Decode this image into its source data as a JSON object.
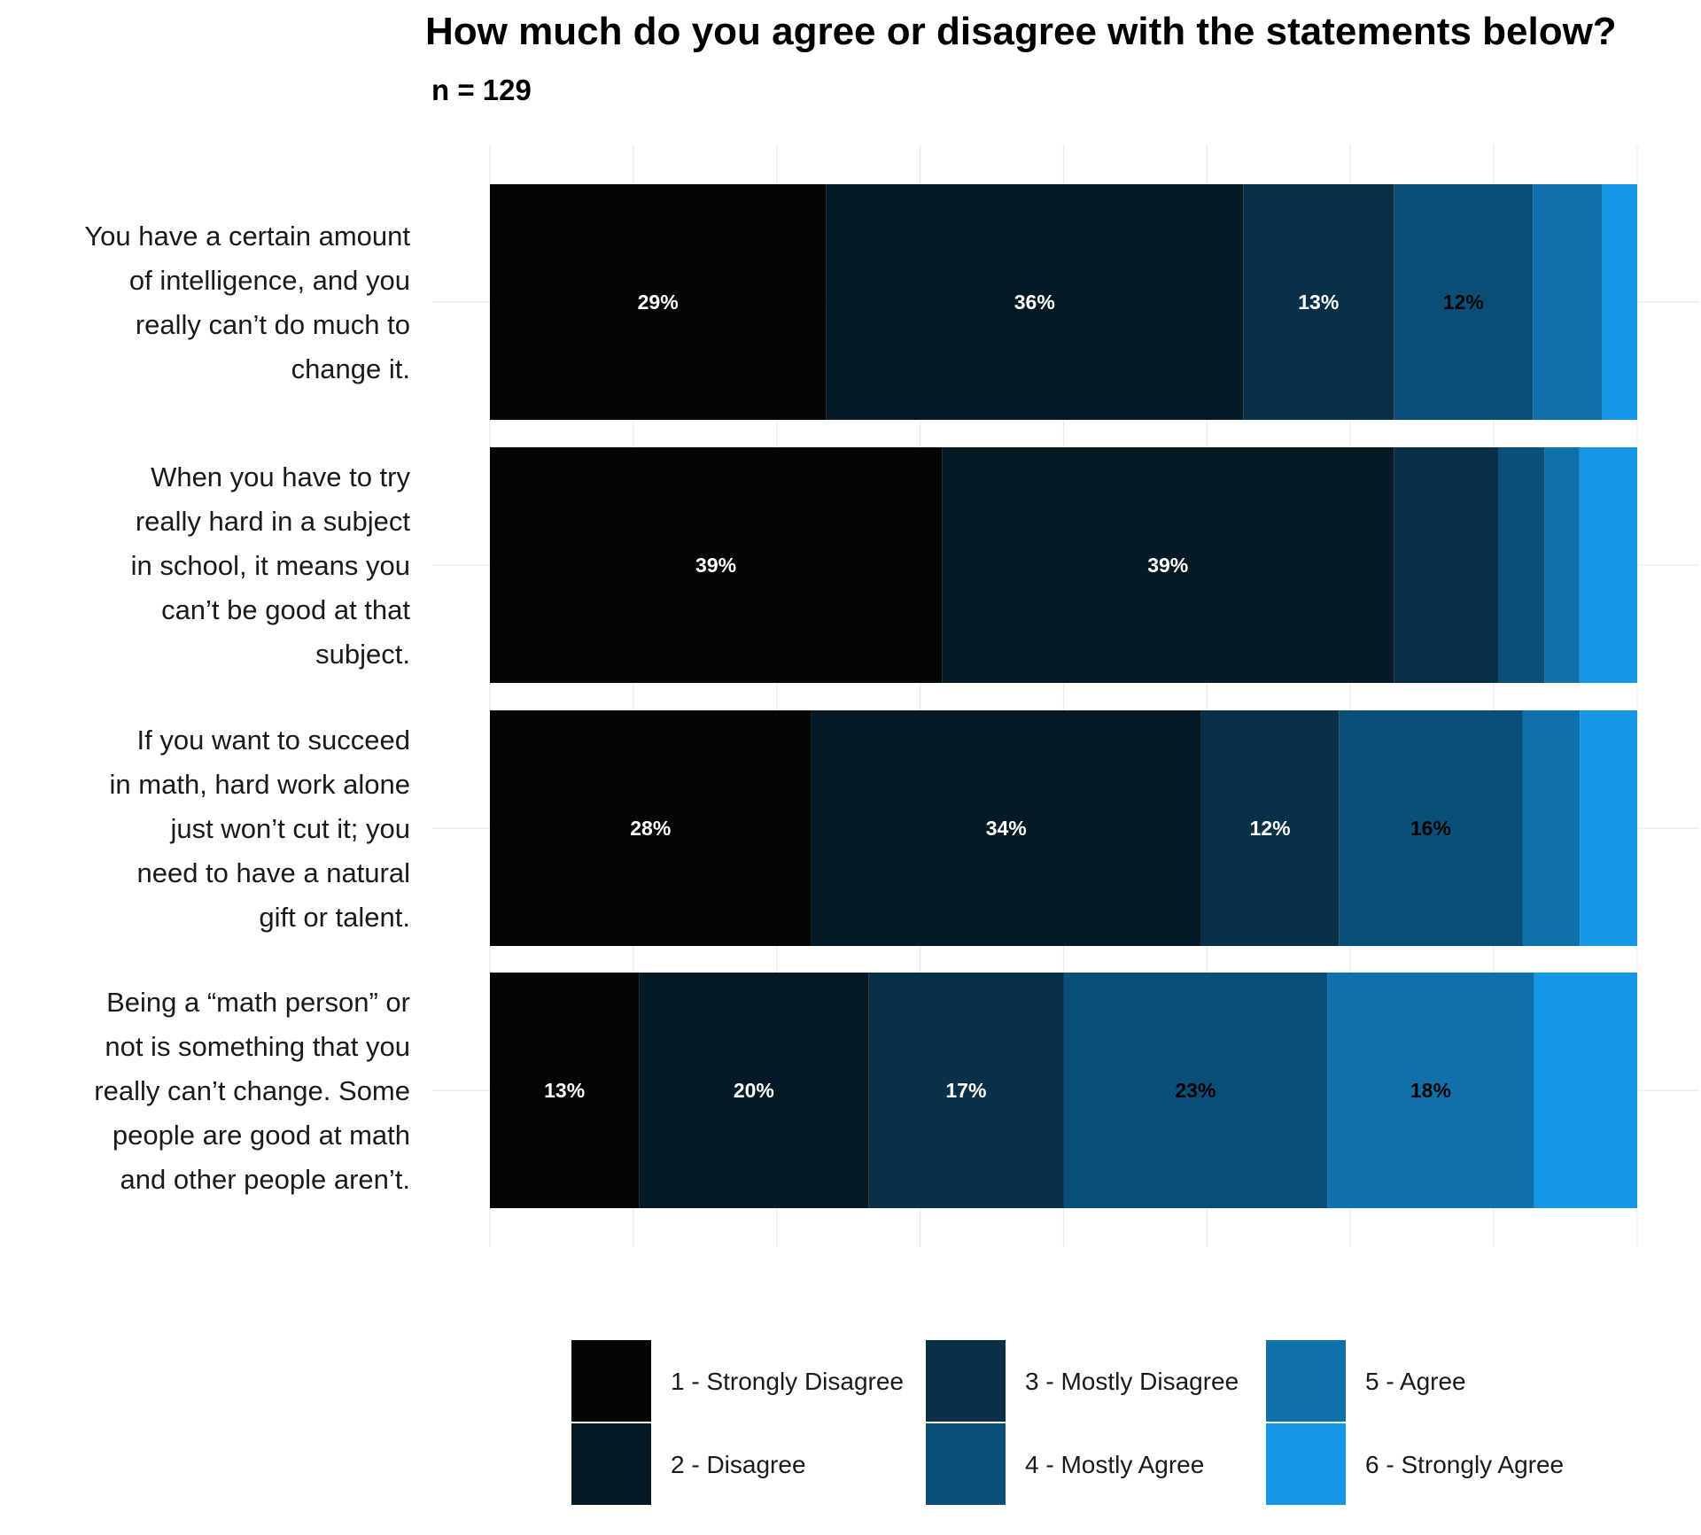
{
  "chart_data": {
    "type": "bar",
    "orientation": "horizontal",
    "stacked": true,
    "title": "How much do you agree or disagree with the statements below?",
    "subtitle": "n = 129",
    "categories": [
      "You have a certain amount of intelligence, and you really can’t do much to change it.",
      "When you have to try really hard in a subject in school, it means you can’t be good at that subject.",
      "If you want to succeed in math, hard work alone just won’t cut it; you need to have a natural gift or talent.",
      "Being a “math person” or not is something that you really can’t change. Some people are good at math and other people aren’t."
    ],
    "category_lines": [
      [
        "You have a certain amount",
        "of intelligence, and you",
        "really can’t do much to",
        "change it."
      ],
      [
        "When you have to try",
        "really hard in a subject",
        "in school, it means you",
        "can’t be good at that",
        "subject."
      ],
      [
        "If you want to succeed",
        "in math, hard work alone",
        "just won’t cut it; you",
        "need to have a natural",
        "gift or talent."
      ],
      [
        "Being a “math person” or",
        "not is something that you",
        "really can’t change. Some",
        "people are good at math",
        "and other people aren’t."
      ]
    ],
    "series": [
      {
        "name": "1 - Strongly Disagree",
        "color": "#050505",
        "label_color": "#ffffff",
        "values": [
          29,
          39,
          28,
          13
        ]
      },
      {
        "name": "2 - Disagree",
        "color": "#061a26",
        "label_color": "#ffffff",
        "values": [
          36,
          39,
          34,
          20
        ]
      },
      {
        "name": "3 - Mostly Disagree",
        "color": "#0a3048",
        "label_color": "#ffffff",
        "values": [
          13,
          9,
          12,
          17
        ]
      },
      {
        "name": "4 - Mostly Agree",
        "color": "#0b4e77",
        "label_color": "#000000",
        "values": [
          12,
          4,
          16,
          23
        ]
      },
      {
        "name": "5 - Agree",
        "color": "#1070ac",
        "label_color": "#000000",
        "values": [
          6,
          3,
          5,
          18
        ]
      },
      {
        "name": "6 - Strongly Agree",
        "color": "#1597e5",
        "label_color": "#000000",
        "values": [
          3,
          5,
          5,
          9
        ]
      }
    ],
    "data_labels": [
      [
        "29%",
        "36%",
        "13%",
        "12%",
        "",
        ""
      ],
      [
        "39%",
        "39%",
        "",
        "",
        "",
        ""
      ],
      [
        "28%",
        "34%",
        "12%",
        "16%",
        "",
        ""
      ],
      [
        "13%",
        "20%",
        "17%",
        "23%",
        "18%",
        ""
      ]
    ],
    "xlim": [
      0,
      100
    ],
    "x_axis_labels": false,
    "grid": true,
    "legend_position": "bottom",
    "legend_columns": 3
  }
}
